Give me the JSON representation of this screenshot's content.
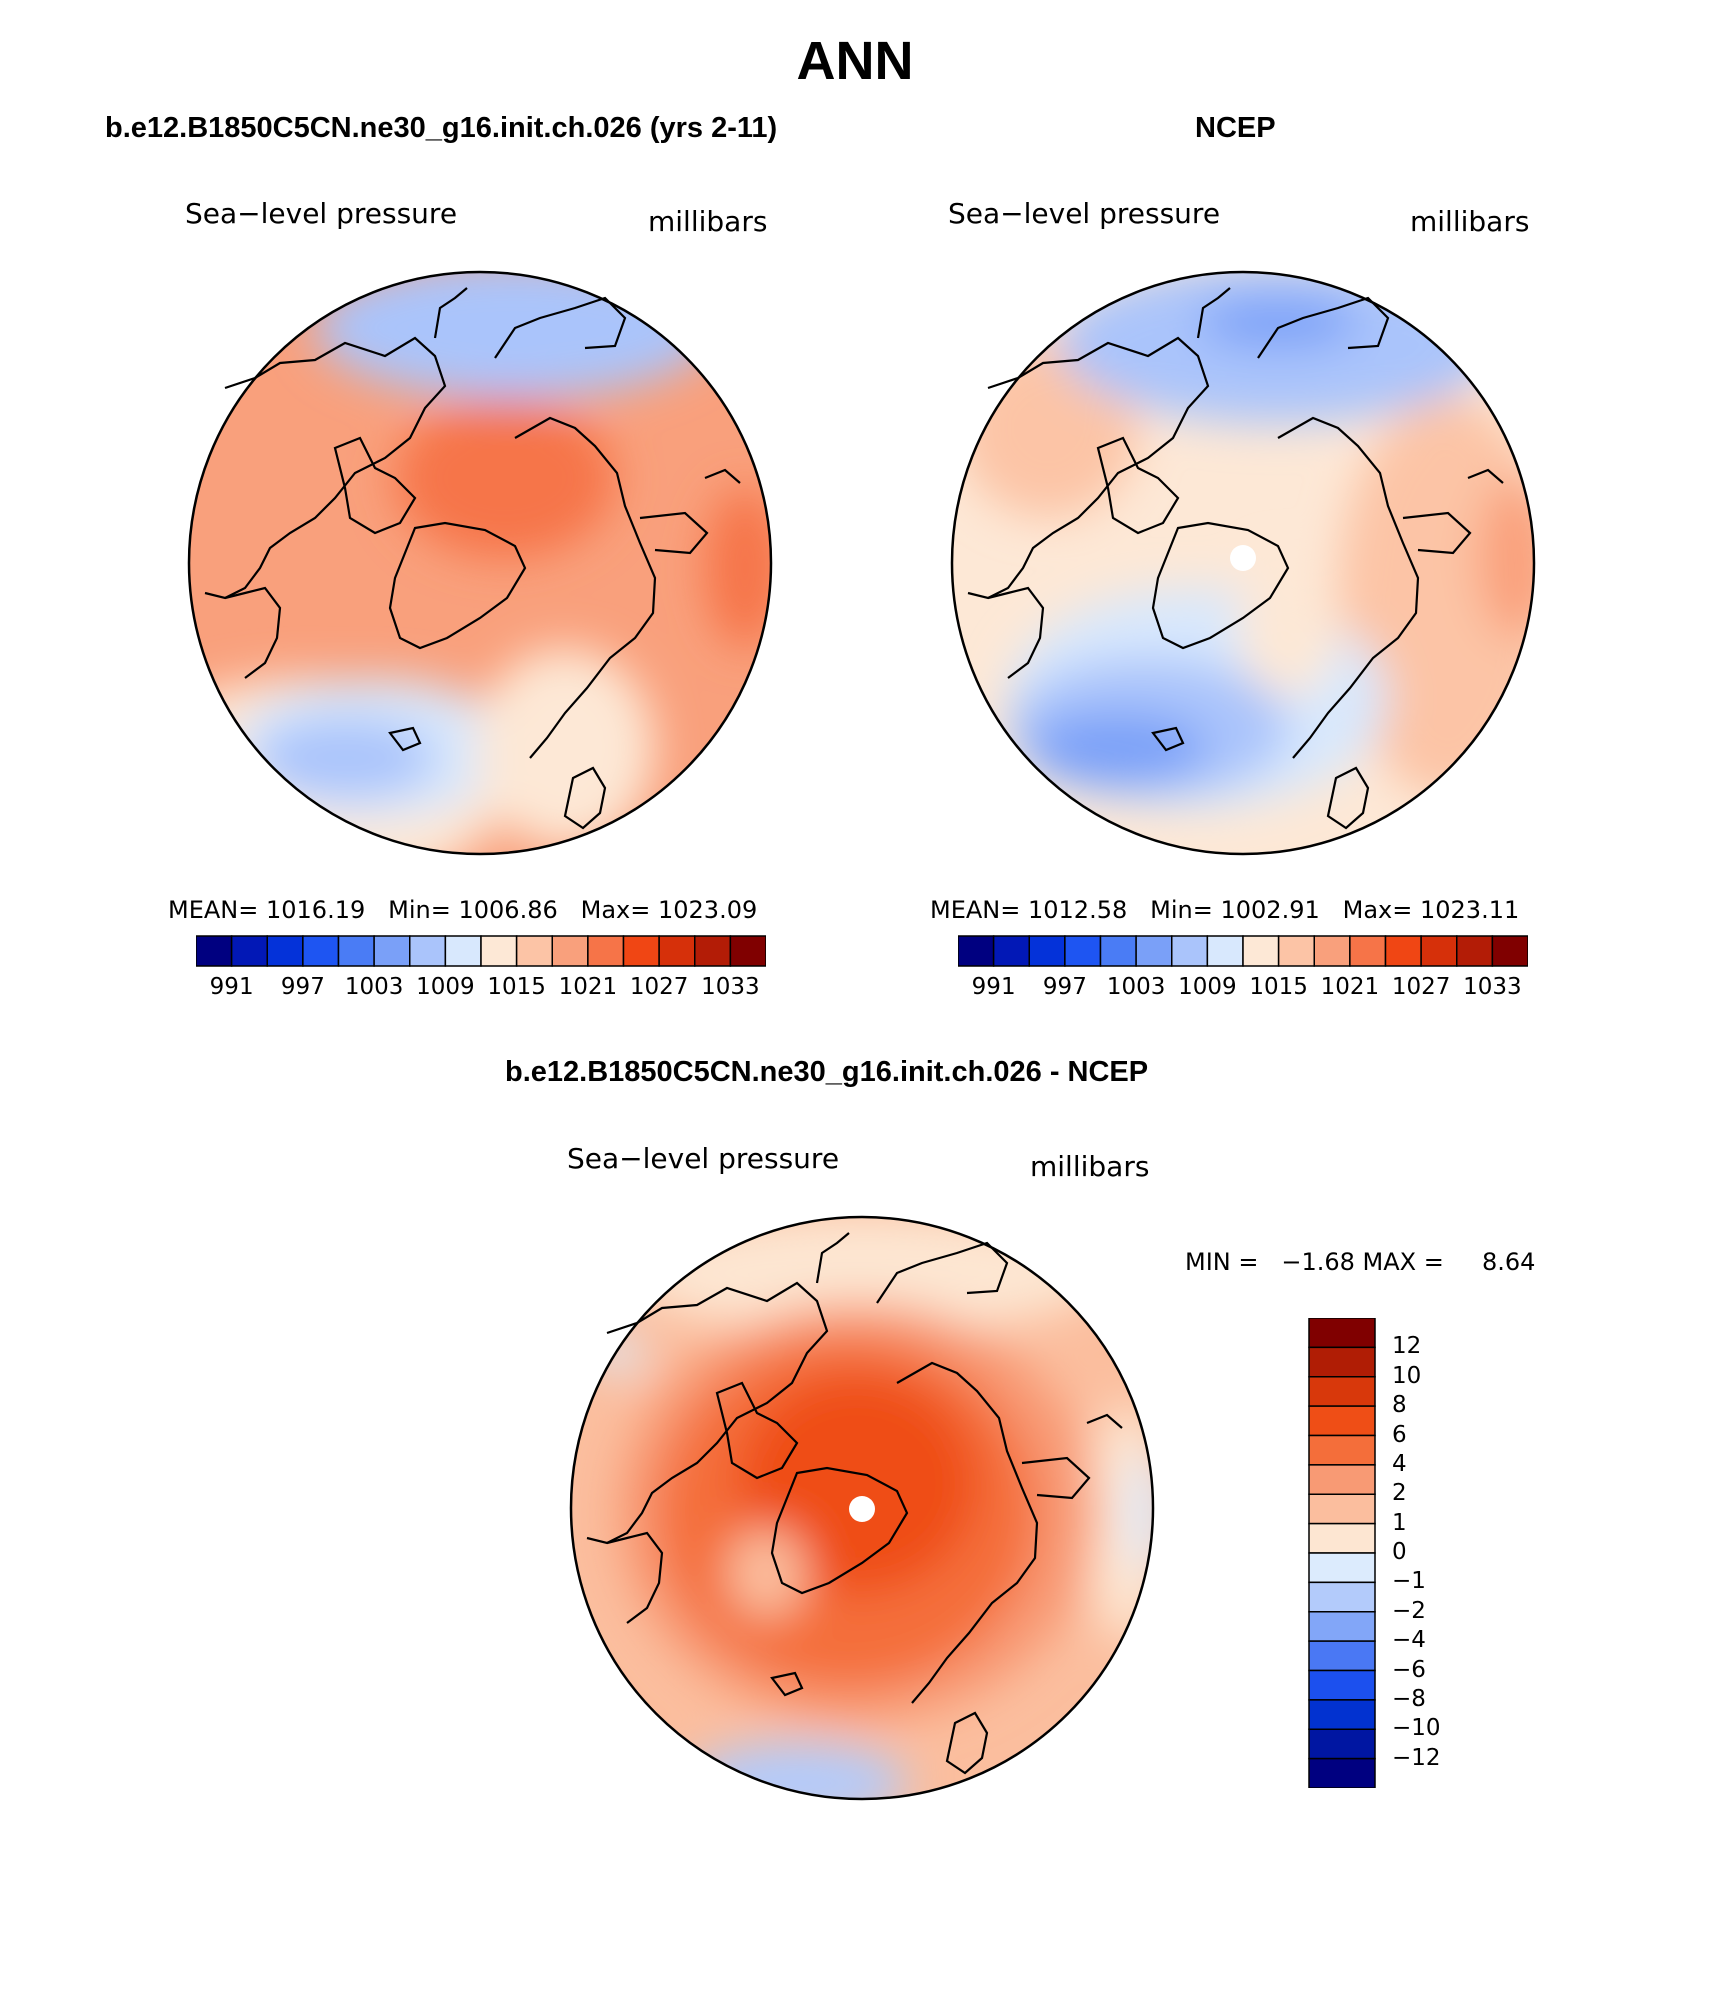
{
  "page": {
    "title": "ANN"
  },
  "colors": {
    "scale": [
      "#000080",
      "#0218b6",
      "#0432d9",
      "#1e55f2",
      "#4a7cf5",
      "#7aa0f8",
      "#aac4fb",
      "#d8e8fd",
      "#fde8d6",
      "#fcc4a6",
      "#f9a07c",
      "#f67448",
      "#f04614",
      "#d6300a",
      "#b31c06",
      "#800000"
    ],
    "diff_scale": [
      "#000080",
      "#0016a2",
      "#0232d0",
      "#1c50ee",
      "#4a78f4",
      "#82a6f8",
      "#b3cbfb",
      "#dcebfd",
      "#fde6d2",
      "#fbbe9e",
      "#f89a74",
      "#f46e3a",
      "#ef4e16",
      "#d8380b",
      "#b01d05",
      "#800000"
    ]
  },
  "chart_data": [
    {
      "type": "polar_map",
      "panel": "model",
      "case_title": "b.e12.B1850C5CN.ne30_g16.init.ch.026 (yrs 2-11)",
      "left_label": "Sea−level pressure",
      "right_label": "millibars",
      "stats": {
        "mean_label": "MEAN=",
        "mean": "1016.19",
        "min_label": "Min=",
        "min": "1006.86",
        "max_label": "Max=",
        "max": "1023.09"
      },
      "colorbar_ticks": [
        "991",
        "997",
        "1003",
        "1009",
        "1015",
        "1021",
        "1027",
        "1033"
      ]
    },
    {
      "type": "polar_map",
      "panel": "obs",
      "case_title": "NCEP",
      "left_label": "Sea−level pressure",
      "right_label": "millibars",
      "stats": {
        "mean_label": "MEAN=",
        "mean": "1012.58",
        "min_label": "Min=",
        "min": "1002.91",
        "max_label": "Max=",
        "max": "1023.11"
      },
      "colorbar_ticks": [
        "991",
        "997",
        "1003",
        "1009",
        "1015",
        "1021",
        "1027",
        "1033"
      ]
    },
    {
      "type": "polar_map",
      "panel": "difference",
      "case_title": "b.e12.B1850C5CN.ne30_g16.init.ch.026 - NCEP",
      "left_label": "Sea−level pressure",
      "right_label": "millibars",
      "minmax_text": "MIN =   −1.68 MAX =     8.64",
      "min": -1.68,
      "max": 8.64,
      "colorbar_ticks": [
        "12",
        "10",
        "8",
        "6",
        "4",
        "2",
        "1",
        "0",
        "−1",
        "−2",
        "−4",
        "−6",
        "−8",
        "−10",
        "−12"
      ]
    }
  ]
}
